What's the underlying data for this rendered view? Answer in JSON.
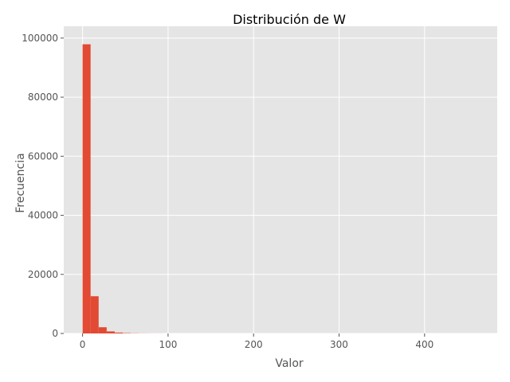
{
  "chart_data": {
    "type": "bar",
    "title": "Distribución de W",
    "xlabel": "Valor",
    "ylabel": "Frecuencia",
    "xlim": [
      -22,
      485
    ],
    "ylim": [
      0,
      104000
    ],
    "xticks": [
      0,
      100,
      200,
      300,
      400
    ],
    "xtick_labels": [
      "0",
      "100",
      "200",
      "300",
      "400"
    ],
    "yticks": [
      0,
      20000,
      40000,
      60000,
      80000,
      100000
    ],
    "ytick_labels": [
      "0",
      "20000",
      "40000",
      "60000",
      "80000",
      "100000"
    ],
    "grid": true,
    "colors": {
      "bar": "#E24A33",
      "plot_background": "#E5E5E5",
      "grid": "#FFFFFF",
      "text": "#555555"
    },
    "bins": [
      {
        "x0": 0.0,
        "x1": 9.4,
        "value": 97900
      },
      {
        "x0": 9.4,
        "x1": 18.8,
        "value": 12600
      },
      {
        "x0": 18.8,
        "x1": 28.2,
        "value": 2100
      },
      {
        "x0": 28.2,
        "x1": 37.6,
        "value": 700
      },
      {
        "x0": 37.6,
        "x1": 47.0,
        "value": 300
      },
      {
        "x0": 47.0,
        "x1": 56.4,
        "value": 120
      },
      {
        "x0": 56.4,
        "x1": 65.8,
        "value": 60
      },
      {
        "x0": 65.8,
        "x1": 75.2,
        "value": 30
      },
      {
        "x0": 75.2,
        "x1": 84.6,
        "value": 15
      },
      {
        "x0": 84.6,
        "x1": 94.0,
        "value": 10
      }
    ]
  }
}
